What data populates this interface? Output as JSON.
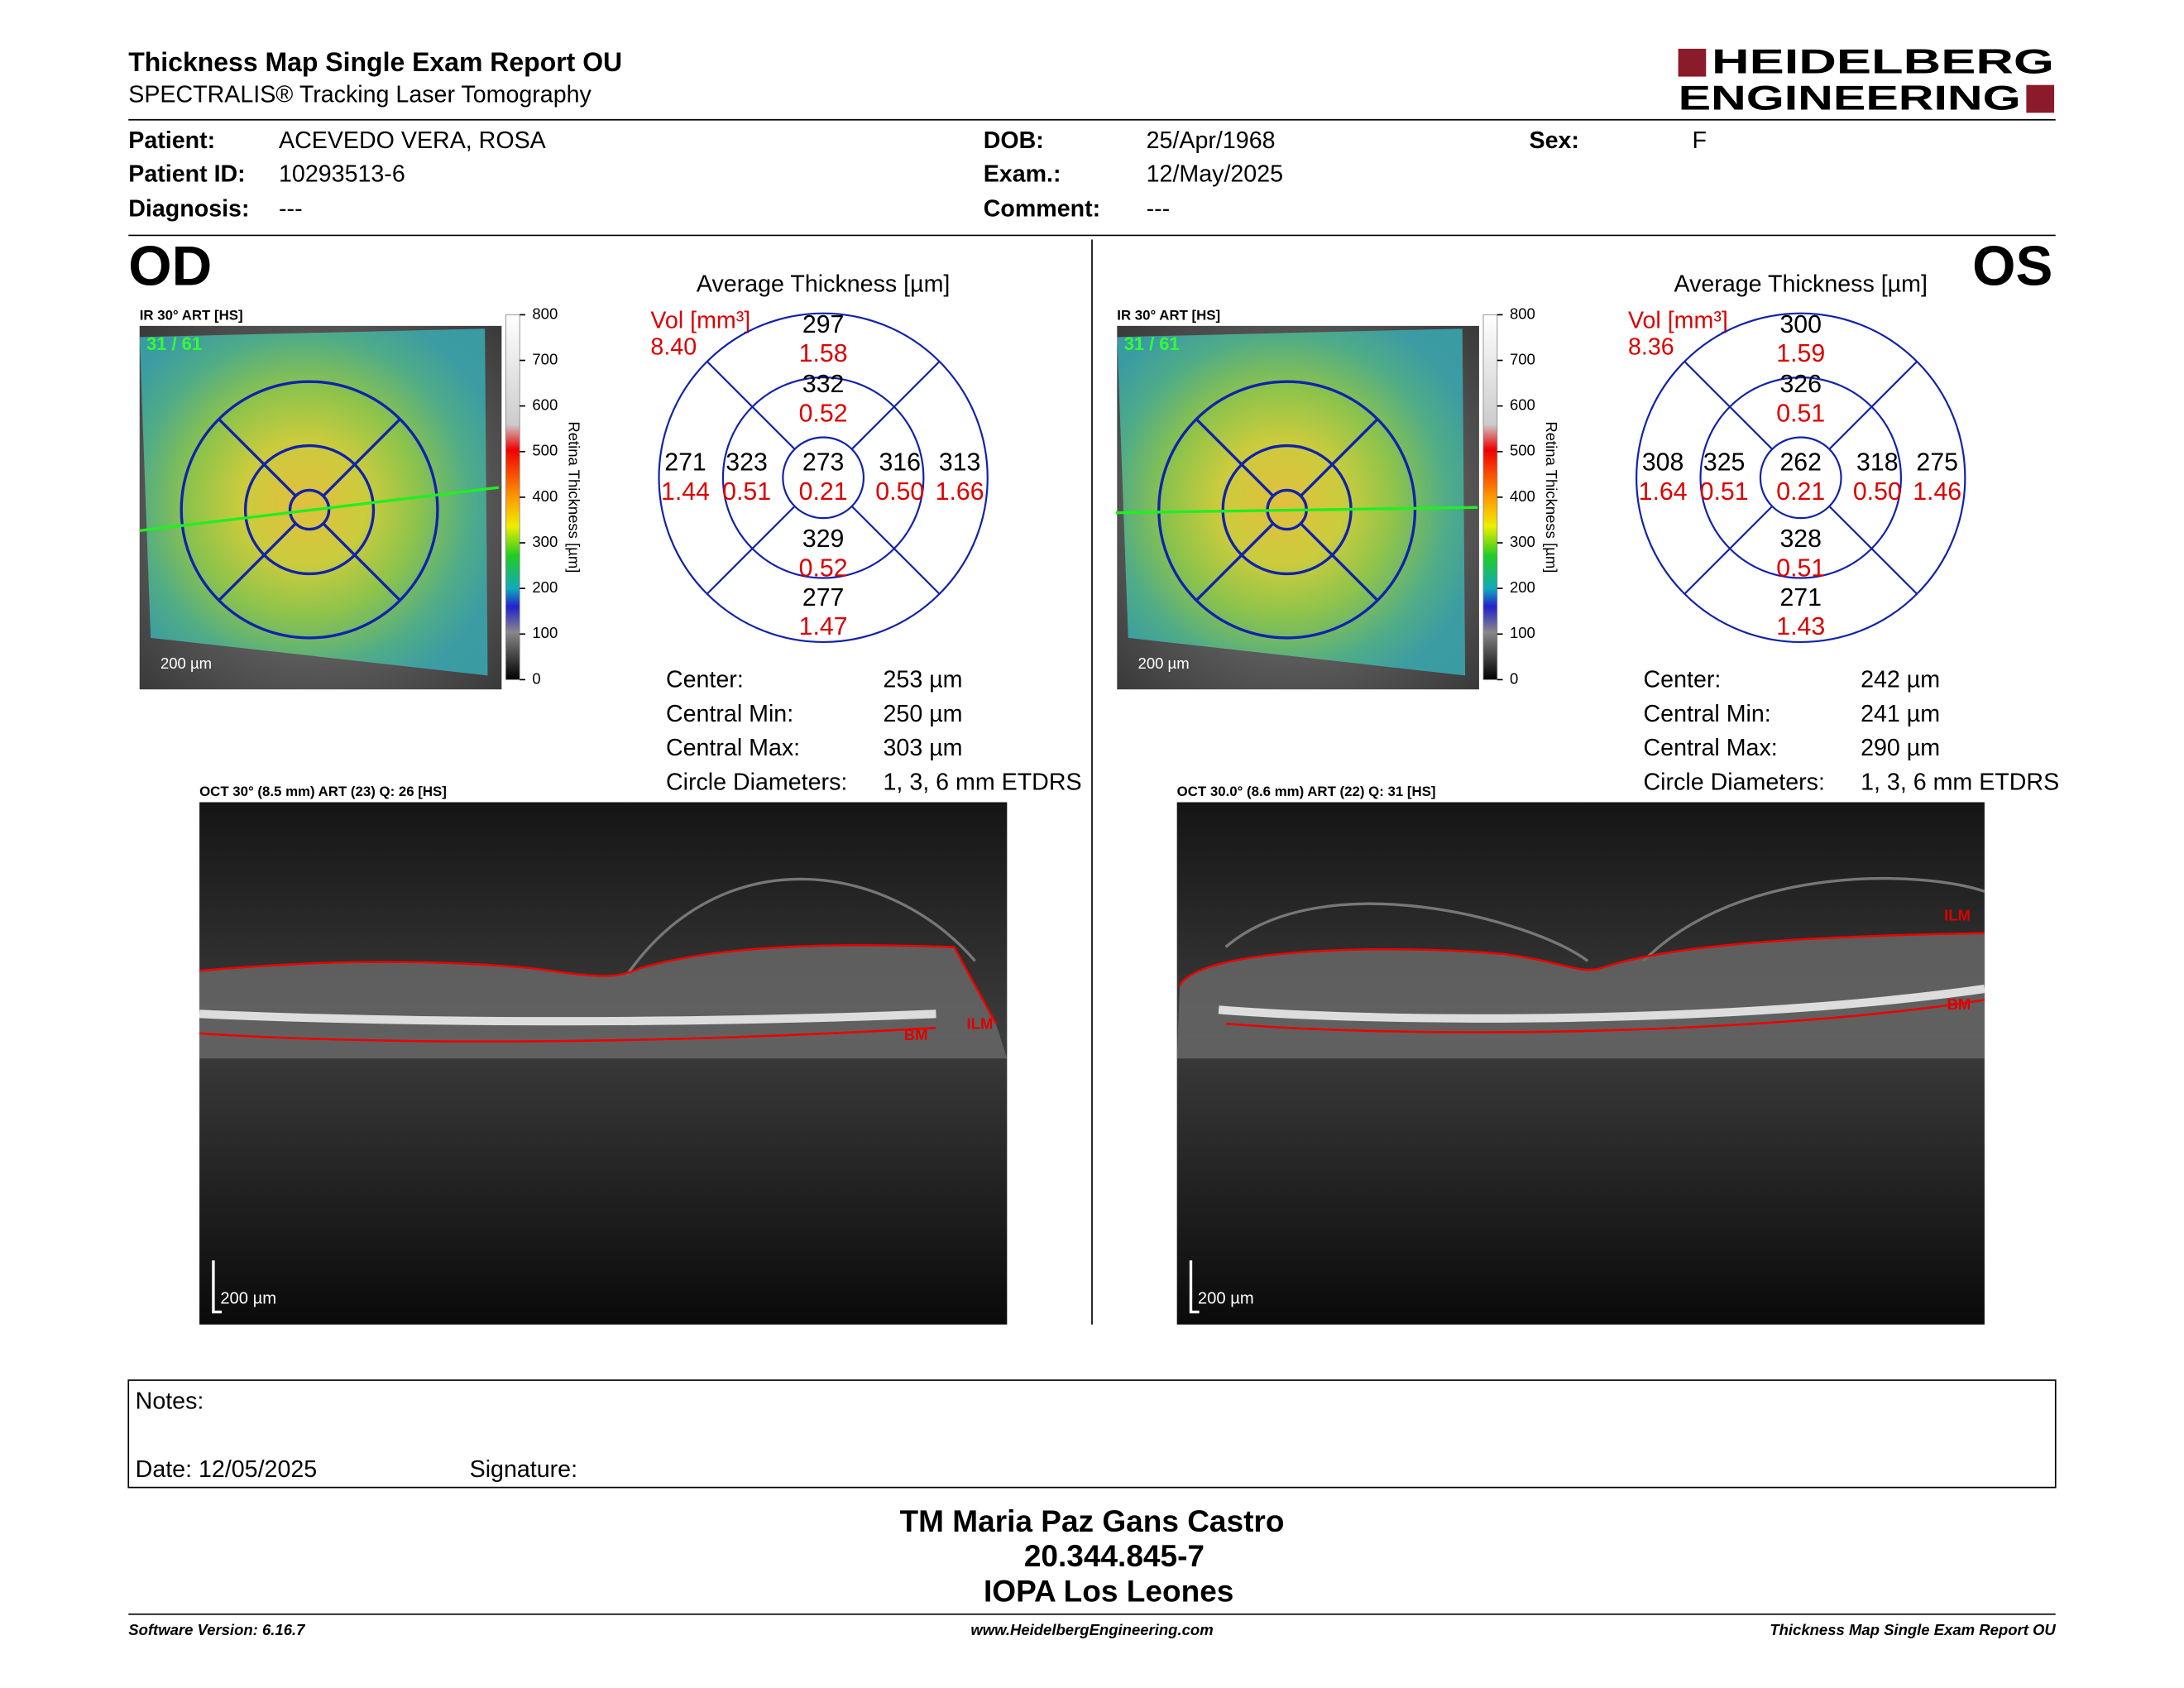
{
  "header": {
    "title": "Thickness Map Single Exam Report OU",
    "subtitle": "SPECTRALIS® Tracking Laser Tomography",
    "logo": [
      "HEIDELBERG",
      "ENGINEERING"
    ]
  },
  "patient": [
    {
      "label": "Patient:",
      "value": "ACEVEDO VERA, ROSA"
    },
    {
      "label": "Patient ID:",
      "value": "10293513-6"
    },
    {
      "label": "Diagnosis:",
      "value": "---"
    },
    {
      "label": "DOB:",
      "value": "25/Apr/1968"
    },
    {
      "label": "Exam.:",
      "value": "12/May/2025"
    },
    {
      "label": "Comment:",
      "value": "---"
    },
    {
      "label": "Sex:",
      "value": "F"
    }
  ],
  "eyes": [
    {
      "label": "OD",
      "ir_title": "IR 30° ART [HS]",
      "frame": "31 / 61",
      "ir_scale": "200 µm",
      "colorbar_ticks": [
        "800",
        "700",
        "600",
        "500",
        "400",
        "300",
        "200",
        "100",
        "0"
      ],
      "colorbar_title": "Retina Thickness [µm]",
      "avg_title": "Average Thickness [µm]",
      "vol_label": "Vol [mm³]",
      "vol_total": "8.40",
      "sectors": {
        "top_outer": {
          "thickness": "297",
          "volume": "1.58"
        },
        "top_inner": {
          "thickness": "332",
          "volume": "0.52"
        },
        "left_outer": {
          "thickness": "271",
          "volume": "1.44"
        },
        "left_inner": {
          "thickness": "323",
          "volume": "0.51"
        },
        "center": {
          "thickness": "273",
          "volume": "0.21"
        },
        "right_inner": {
          "thickness": "316",
          "volume": "0.50"
        },
        "right_outer": {
          "thickness": "313",
          "volume": "1.66"
        },
        "bottom_inner": {
          "thickness": "329",
          "volume": "0.52"
        },
        "bottom_outer": {
          "thickness": "277",
          "volume": "1.47"
        }
      },
      "stats": [
        {
          "label": "Center:",
          "value": "253 µm"
        },
        {
          "label": "Central Min:",
          "value": "250 µm"
        },
        {
          "label": "Central Max:",
          "value": "303 µm"
        },
        {
          "label": "Circle Diameters:",
          "value": "1, 3, 6 mm ETDRS"
        }
      ],
      "oct_title": "OCT 30° (8.5 mm) ART (23) Q: 26 [HS]",
      "oct_scale": "200 µm",
      "ilm": "ILM",
      "bm": "BM"
    },
    {
      "label": "OS",
      "ir_title": "IR 30° ART [HS]",
      "frame": "31 / 61",
      "ir_scale": "200 µm",
      "colorbar_ticks": [
        "800",
        "700",
        "600",
        "500",
        "400",
        "300",
        "200",
        "100",
        "0"
      ],
      "colorbar_title": "Retina Thickness [µm]",
      "avg_title": "Average Thickness [µm]",
      "vol_label": "Vol [mm³]",
      "vol_total": "8.36",
      "sectors": {
        "top_outer": {
          "thickness": "300",
          "volume": "1.59"
        },
        "top_inner": {
          "thickness": "326",
          "volume": "0.51"
        },
        "left_outer": {
          "thickness": "308",
          "volume": "1.64"
        },
        "left_inner": {
          "thickness": "325",
          "volume": "0.51"
        },
        "center": {
          "thickness": "262",
          "volume": "0.21"
        },
        "right_inner": {
          "thickness": "318",
          "volume": "0.50"
        },
        "right_outer": {
          "thickness": "275",
          "volume": "1.46"
        },
        "bottom_inner": {
          "thickness": "328",
          "volume": "0.51"
        },
        "bottom_outer": {
          "thickness": "271",
          "volume": "1.43"
        }
      },
      "stats": [
        {
          "label": "Center:",
          "value": "242 µm"
        },
        {
          "label": "Central Min:",
          "value": "241 µm"
        },
        {
          "label": "Central Max:",
          "value": "290 µm"
        },
        {
          "label": "Circle Diameters:",
          "value": "1, 3, 6 mm ETDRS"
        }
      ],
      "oct_title": "OCT 30.0° (8.6 mm) ART (22) Q: 31 [HS]",
      "oct_scale": "200 µm",
      "ilm": "ILM",
      "bm": "BM"
    }
  ],
  "notes": {
    "label": "Notes:",
    "date": "Date: 12/05/2025",
    "signature": "Signature:"
  },
  "signature": [
    "TM Maria Paz Gans Castro",
    "20.344.845-7",
    "IOPA Los Leones"
  ],
  "footer": {
    "left": "Software Version: 6.16.7",
    "center": "www.HeidelbergEngineering.com",
    "right": "Thickness Map Single Exam Report OU"
  }
}
